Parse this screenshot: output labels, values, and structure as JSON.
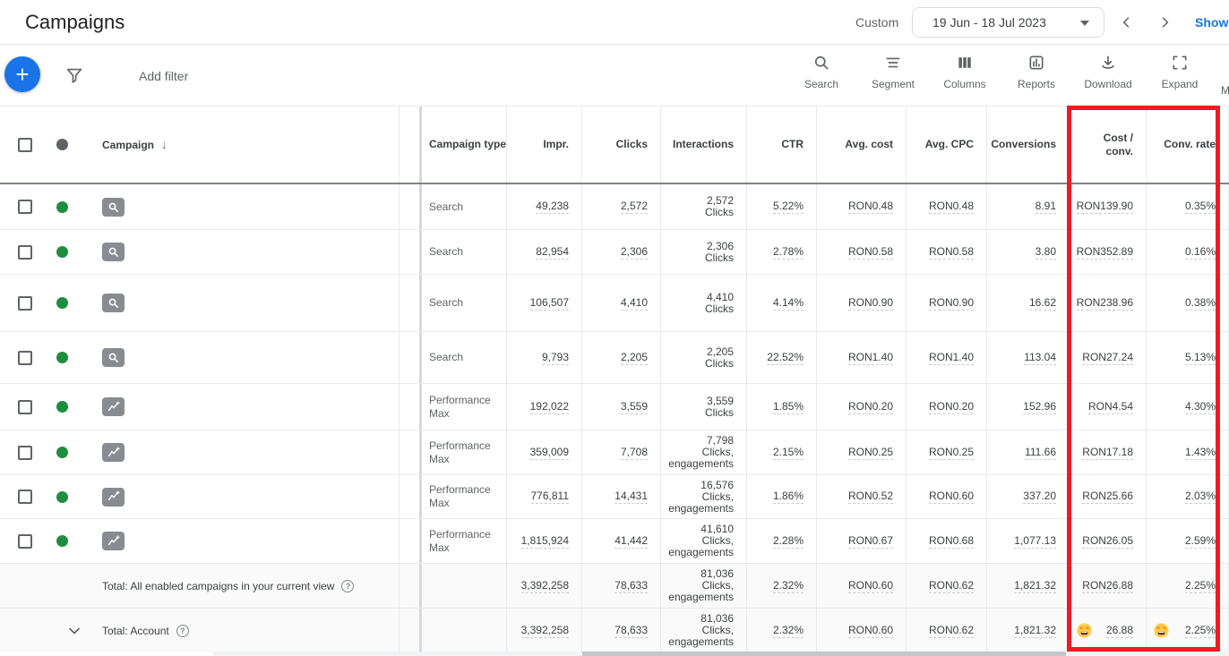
{
  "page": {
    "title": "Campaigns"
  },
  "date_bar": {
    "mode_label": "Custom",
    "range": "19 Jun - 18 Jul 2023",
    "show_link": "Show"
  },
  "toolbar": {
    "add_filter_label": "Add filter",
    "actions": [
      {
        "label": "Search",
        "icon": "search-icon"
      },
      {
        "label": "Segment",
        "icon": "segment-icon"
      },
      {
        "label": "Columns",
        "icon": "columns-icon"
      },
      {
        "label": "Reports",
        "icon": "reports-icon"
      },
      {
        "label": "Download",
        "icon": "download-icon"
      },
      {
        "label": "Expand",
        "icon": "expand-icon"
      }
    ],
    "overflow_partial": "M"
  },
  "table": {
    "headers": {
      "campaign": "Campaign",
      "sort_arrow": "↓",
      "type": "Campaign type",
      "impr": "Impr.",
      "clicks": "Clicks",
      "interactions": "Interactions",
      "ctr": "CTR",
      "avg_cost": "Avg. cost",
      "avg_cpc": "Avg. CPC",
      "conversions": "Conversions",
      "cost_conv": "Cost /\nconv.",
      "conv_rate": "Conv. rate"
    },
    "rows": [
      {
        "status": "enabled",
        "icon": "search-campaign-icon",
        "type": "Search",
        "impr": "49,238",
        "clicks": "2,572",
        "interactions": "2,572\nClicks",
        "ctr": "5.22%",
        "avg_cost": "RON0.48",
        "avg_cpc": "RON0.48",
        "conversions": "8.91",
        "cost_conv": "RON139.90",
        "conv_rate": "0.35%"
      },
      {
        "status": "enabled",
        "icon": "search-campaign-icon",
        "type": "Search",
        "impr": "82,954",
        "clicks": "2,306",
        "interactions": "2,306\nClicks",
        "ctr": "2.78%",
        "avg_cost": "RON0.58",
        "avg_cpc": "RON0.58",
        "conversions": "3.80",
        "cost_conv": "RON352.89",
        "conv_rate": "0.16%"
      },
      {
        "status": "enabled",
        "icon": "search-campaign-icon",
        "type": "Search",
        "impr": "106,507",
        "clicks": "4,410",
        "interactions": "4,410\nClicks",
        "ctr": "4.14%",
        "avg_cost": "RON0.90",
        "avg_cpc": "RON0.90",
        "conversions": "16.62",
        "cost_conv": "RON238.96",
        "conv_rate": "0.38%"
      },
      {
        "status": "enabled",
        "icon": "search-campaign-icon",
        "type": "Search",
        "impr": "9,793",
        "clicks": "2,205",
        "interactions": "2,205\nClicks",
        "ctr": "22.52%",
        "avg_cost": "RON1.40",
        "avg_cpc": "RON1.40",
        "conversions": "113.04",
        "cost_conv": "RON27.24",
        "conv_rate": "5.13%"
      },
      {
        "status": "enabled",
        "icon": "performance-max-campaign-icon",
        "type": "Performance Max",
        "impr": "192,022",
        "clicks": "3,559",
        "interactions": "3,559\nClicks",
        "ctr": "1.85%",
        "avg_cost": "RON0.20",
        "avg_cpc": "RON0.20",
        "conversions": "152.96",
        "cost_conv": "RON4.54",
        "conv_rate": "4.30%"
      },
      {
        "status": "enabled",
        "icon": "performance-max-campaign-icon",
        "type": "Performance Max",
        "impr": "359,009",
        "clicks": "7,708",
        "interactions": "7,798\nClicks,\nengagements",
        "ctr": "2.15%",
        "avg_cost": "RON0.25",
        "avg_cpc": "RON0.25",
        "conversions": "111.66",
        "cost_conv": "RON17.18",
        "conv_rate": "1.43%"
      },
      {
        "status": "enabled",
        "icon": "performance-max-campaign-icon",
        "type": "Performance Max",
        "impr": "776,811",
        "clicks": "14,431",
        "interactions": "16,576\nClicks,\nengagements",
        "ctr": "1.86%",
        "avg_cost": "RON0.52",
        "avg_cpc": "RON0.60",
        "conversions": "337.20",
        "cost_conv": "RON25.66",
        "conv_rate": "2.03%"
      },
      {
        "status": "enabled",
        "icon": "performance-max-campaign-icon",
        "type": "Performance Max",
        "impr": "1,815,924",
        "clicks": "41,442",
        "interactions": "41,610\nClicks,\nengagements",
        "ctr": "2.28%",
        "avg_cost": "RON0.67",
        "avg_cpc": "RON0.68",
        "conversions": "1,077.13",
        "cost_conv": "RON26.05",
        "conv_rate": "2.59%"
      }
    ],
    "totals": [
      {
        "label": "Total: All enabled campaigns in your current view",
        "expandable": false,
        "impr": "3,392,258",
        "clicks": "78,633",
        "interactions": "81,036\nClicks,\nengagements",
        "ctr": "2.32%",
        "avg_cost": "RON0.60",
        "avg_cpc": "RON0.62",
        "conversions": "1,821.32",
        "cost_conv": "RON26.88",
        "conv_rate": "2.25%",
        "cost_conv_emoji": false,
        "conv_rate_emoji": false
      },
      {
        "label": "Total: Account",
        "expandable": true,
        "impr": "3,392,258",
        "clicks": "78,633",
        "interactions": "81,036\nClicks,\nengagements",
        "ctr": "2.32%",
        "avg_cost": "RON0.60",
        "avg_cpc": "RON0.62",
        "conversions": "1,821.32",
        "cost_conv": "26.88",
        "conv_rate": "2.25%",
        "cost_conv_emoji": true,
        "conv_rate_emoji": true
      }
    ]
  },
  "annotations": {
    "highlight_columns": [
      "Cost / conv.",
      "Conv. rate"
    ],
    "highlight_color": "#ed1c24"
  },
  "colors": {
    "accent_blue": "#1a73e8",
    "enabled_green": "#1e8e3e",
    "header_dot_gray": "#5f6368"
  },
  "icons": {
    "emoji": "star-struck-emoji",
    "campaign_sort": "arrow-down-icon",
    "help": "question-circle-icon"
  }
}
